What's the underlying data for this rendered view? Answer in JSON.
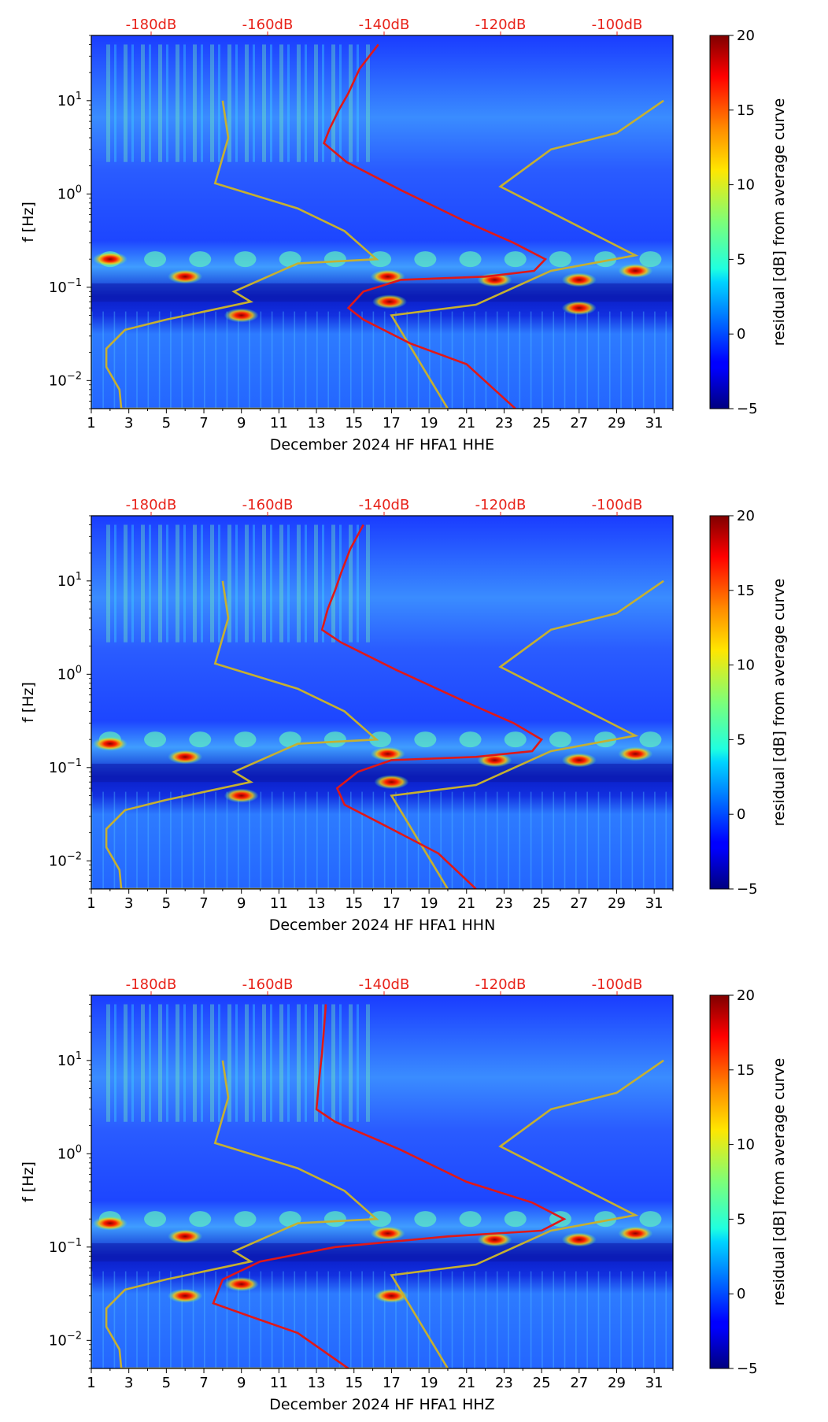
{
  "chart_data": [
    {
      "type": "heatmap",
      "xlabel": "December 2024 HF HFA1  HHE",
      "ylabel": "f [Hz]",
      "x_ticks": [
        "1",
        "3",
        "5",
        "7",
        "9",
        "11",
        "13",
        "15",
        "17",
        "19",
        "21",
        "23",
        "25",
        "27",
        "29",
        "31"
      ],
      "xlim": [
        1,
        32
      ],
      "ylim_hz": [
        0.005,
        50
      ],
      "y_ticks": [
        {
          "value": 0.01,
          "base": "10",
          "exp": "−2"
        },
        {
          "value": 0.1,
          "base": "10",
          "exp": "−1"
        },
        {
          "value": 1,
          "base": "10",
          "exp": "0"
        },
        {
          "value": 10,
          "base": "10",
          "exp": "1"
        }
      ],
      "top_axis_labels": [
        "-180dB",
        "-160dB",
        "-140dB",
        "-120dB",
        "-100dB"
      ],
      "colorbar": {
        "label": "residual [dB] from average curve",
        "min": -5,
        "max": 20,
        "ticks": [
          "20",
          "15",
          "10",
          "5",
          "0",
          "−5"
        ]
      },
      "red_curve": [
        [
          16.3,
          40
        ],
        [
          15.3,
          22
        ],
        [
          14.7,
          12
        ],
        [
          14.2,
          8
        ],
        [
          13.7,
          5
        ],
        [
          13.4,
          3.5
        ],
        [
          14.6,
          2.2
        ],
        [
          17.5,
          1.1
        ],
        [
          21,
          0.5
        ],
        [
          23.5,
          0.3
        ],
        [
          25.2,
          0.2
        ],
        [
          24.6,
          0.15
        ],
        [
          22,
          0.13
        ],
        [
          17.5,
          0.12
        ],
        [
          15.5,
          0.09
        ],
        [
          14.7,
          0.06
        ],
        [
          15.5,
          0.045
        ],
        [
          18,
          0.025
        ],
        [
          21,
          0.015
        ],
        [
          23.6,
          0.005
        ]
      ],
      "gold_curve": [
        [
          8.0,
          10
        ],
        [
          8.3,
          4
        ],
        [
          7.6,
          1.3
        ],
        [
          12,
          0.7
        ],
        [
          14.5,
          0.4
        ],
        [
          16.2,
          0.2
        ],
        [
          12,
          0.18
        ],
        [
          8.6,
          0.09
        ],
        [
          9.5,
          0.07
        ],
        [
          5,
          0.045
        ],
        [
          2.8,
          0.035
        ],
        [
          1.8,
          0.022
        ],
        [
          1.8,
          0.014
        ],
        [
          2.5,
          0.008
        ],
        [
          2.6,
          0.005
        ],
        [
          20,
          0.005
        ],
        [
          17,
          0.05
        ],
        [
          21.5,
          0.065
        ],
        [
          25.5,
          0.15
        ],
        [
          30,
          0.22
        ],
        [
          22.8,
          1.2
        ],
        [
          25.5,
          3
        ],
        [
          29,
          4.5
        ],
        [
          31.5,
          10
        ]
      ],
      "hot_spots": [
        [
          6,
          0.13
        ],
        [
          16.8,
          0.13
        ],
        [
          16.9,
          0.07
        ],
        [
          22.5,
          0.12
        ],
        [
          27,
          0.12
        ],
        [
          30,
          0.15
        ],
        [
          2,
          0.2
        ],
        [
          9,
          0.05
        ],
        [
          27,
          0.06
        ]
      ]
    },
    {
      "type": "heatmap",
      "xlabel": "December 2024 HF HFA1  HHN",
      "ylabel": "f [Hz]",
      "x_ticks": [
        "1",
        "3",
        "5",
        "7",
        "9",
        "11",
        "13",
        "15",
        "17",
        "19",
        "21",
        "23",
        "25",
        "27",
        "29",
        "31"
      ],
      "xlim": [
        1,
        32
      ],
      "ylim_hz": [
        0.005,
        50
      ],
      "y_ticks": [
        {
          "value": 0.01,
          "base": "10",
          "exp": "−2"
        },
        {
          "value": 0.1,
          "base": "10",
          "exp": "−1"
        },
        {
          "value": 1,
          "base": "10",
          "exp": "0"
        },
        {
          "value": 10,
          "base": "10",
          "exp": "1"
        }
      ],
      "top_axis_labels": [
        "-180dB",
        "-160dB",
        "-140dB",
        "-120dB",
        "-100dB"
      ],
      "colorbar": {
        "label": "residual [dB] from average curve",
        "min": -5,
        "max": 20,
        "ticks": [
          "20",
          "15",
          "10",
          "5",
          "0",
          "−5"
        ]
      },
      "red_curve": [
        [
          15.5,
          40
        ],
        [
          14.8,
          22
        ],
        [
          14.3,
          12
        ],
        [
          14,
          8
        ],
        [
          13.6,
          5
        ],
        [
          13.3,
          3
        ],
        [
          14.3,
          2.2
        ],
        [
          17.3,
          1.1
        ],
        [
          21,
          0.5
        ],
        [
          23.5,
          0.3
        ],
        [
          25,
          0.2
        ],
        [
          24.5,
          0.15
        ],
        [
          21.5,
          0.13
        ],
        [
          17,
          0.12
        ],
        [
          15.2,
          0.09
        ],
        [
          14.1,
          0.06
        ],
        [
          14.5,
          0.04
        ],
        [
          17,
          0.022
        ],
        [
          19.5,
          0.012
        ],
        [
          21.5,
          0.005
        ]
      ],
      "gold_curve": [
        [
          8.0,
          10
        ],
        [
          8.3,
          4
        ],
        [
          7.6,
          1.3
        ],
        [
          12,
          0.7
        ],
        [
          14.5,
          0.4
        ],
        [
          16.2,
          0.2
        ],
        [
          12,
          0.18
        ],
        [
          8.6,
          0.09
        ],
        [
          9.5,
          0.07
        ],
        [
          5,
          0.045
        ],
        [
          2.8,
          0.035
        ],
        [
          1.8,
          0.022
        ],
        [
          1.8,
          0.014
        ],
        [
          2.5,
          0.008
        ],
        [
          2.6,
          0.005
        ],
        [
          20,
          0.005
        ],
        [
          17,
          0.05
        ],
        [
          21.5,
          0.065
        ],
        [
          25.5,
          0.15
        ],
        [
          30,
          0.22
        ],
        [
          22.8,
          1.2
        ],
        [
          25.5,
          3
        ],
        [
          29,
          4.5
        ],
        [
          31.5,
          10
        ]
      ],
      "hot_spots": [
        [
          2,
          0.18
        ],
        [
          6,
          0.13
        ],
        [
          16.8,
          0.14
        ],
        [
          22.5,
          0.12
        ],
        [
          27,
          0.12
        ],
        [
          30,
          0.14
        ],
        [
          9,
          0.05
        ],
        [
          17,
          0.07
        ]
      ]
    },
    {
      "type": "heatmap",
      "xlabel": "December 2024 HF HFA1  HHZ",
      "ylabel": "f [Hz]",
      "x_ticks": [
        "1",
        "3",
        "5",
        "7",
        "9",
        "11",
        "13",
        "15",
        "17",
        "19",
        "21",
        "23",
        "25",
        "27",
        "29",
        "31"
      ],
      "xlim": [
        1,
        32
      ],
      "ylim_hz": [
        0.005,
        50
      ],
      "y_ticks": [
        {
          "value": 0.01,
          "base": "10",
          "exp": "−2"
        },
        {
          "value": 0.1,
          "base": "10",
          "exp": "−1"
        },
        {
          "value": 1,
          "base": "10",
          "exp": "0"
        },
        {
          "value": 10,
          "base": "10",
          "exp": "1"
        }
      ],
      "top_axis_labels": [
        "-180dB",
        "-160dB",
        "-140dB",
        "-120dB",
        "-100dB"
      ],
      "colorbar": {
        "label": "residual [dB] from average curve",
        "min": -5,
        "max": 20,
        "ticks": [
          "20",
          "15",
          "10",
          "5",
          "0",
          "−5"
        ]
      },
      "red_curve": [
        [
          13.5,
          40
        ],
        [
          13.4,
          22
        ],
        [
          13.3,
          12
        ],
        [
          13.2,
          8
        ],
        [
          13.1,
          5
        ],
        [
          13,
          3
        ],
        [
          14,
          2.2
        ],
        [
          17.5,
          1.1
        ],
        [
          21,
          0.5
        ],
        [
          24.5,
          0.3
        ],
        [
          26.2,
          0.2
        ],
        [
          25,
          0.15
        ],
        [
          20,
          0.13
        ],
        [
          14,
          0.1
        ],
        [
          10,
          0.07
        ],
        [
          8,
          0.045
        ],
        [
          7.5,
          0.025
        ],
        [
          9.5,
          0.018
        ],
        [
          12,
          0.012
        ],
        [
          14.7,
          0.005
        ]
      ],
      "gold_curve": [
        [
          8.0,
          10
        ],
        [
          8.3,
          4
        ],
        [
          7.6,
          1.3
        ],
        [
          12,
          0.7
        ],
        [
          14.5,
          0.4
        ],
        [
          16.2,
          0.2
        ],
        [
          12,
          0.18
        ],
        [
          8.6,
          0.09
        ],
        [
          9.5,
          0.07
        ],
        [
          5,
          0.045
        ],
        [
          2.8,
          0.035
        ],
        [
          1.8,
          0.022
        ],
        [
          1.8,
          0.014
        ],
        [
          2.5,
          0.008
        ],
        [
          2.6,
          0.005
        ],
        [
          20,
          0.005
        ],
        [
          17,
          0.05
        ],
        [
          21.5,
          0.065
        ],
        [
          25.5,
          0.15
        ],
        [
          30,
          0.22
        ],
        [
          22.8,
          1.2
        ],
        [
          25.5,
          3
        ],
        [
          29,
          4.5
        ],
        [
          31.5,
          10
        ]
      ],
      "hot_spots": [
        [
          2,
          0.18
        ],
        [
          6,
          0.13
        ],
        [
          16.8,
          0.14
        ],
        [
          17,
          0.03
        ],
        [
          6,
          0.03
        ],
        [
          9,
          0.04
        ],
        [
          22.5,
          0.12
        ],
        [
          27,
          0.12
        ],
        [
          30,
          0.14
        ]
      ]
    }
  ]
}
